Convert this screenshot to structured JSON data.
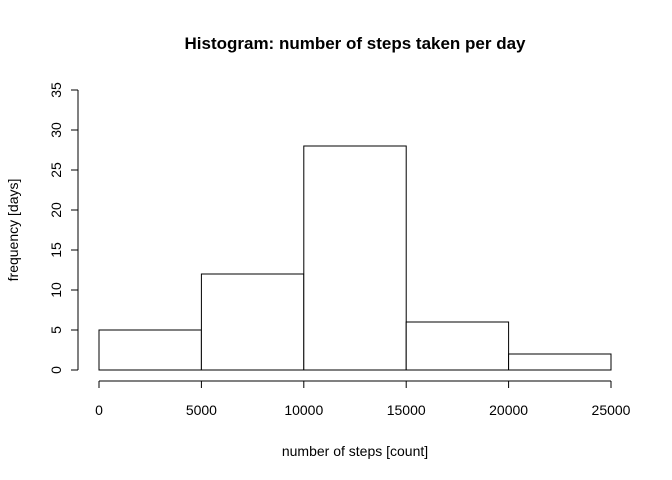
{
  "chart_data": {
    "type": "bar",
    "title": "Histogram: number of steps taken per day",
    "xlabel": "number of steps [count]",
    "ylabel": "frequency [days]",
    "bins": [
      {
        "from": 0,
        "to": 5000,
        "count": 5
      },
      {
        "from": 5000,
        "to": 10000,
        "count": 12
      },
      {
        "from": 10000,
        "to": 15000,
        "count": 28
      },
      {
        "from": 15000,
        "to": 20000,
        "count": 6
      },
      {
        "from": 20000,
        "to": 25000,
        "count": 2
      }
    ],
    "xlim": [
      0,
      25000
    ],
    "ylim": [
      0,
      35
    ],
    "xticks": [
      0,
      5000,
      10000,
      15000,
      20000,
      25000
    ],
    "yticks": [
      0,
      5,
      10,
      15,
      20,
      25,
      30,
      35
    ],
    "grid": false,
    "bar_fill": "#ffffff",
    "bar_stroke": "#000000"
  }
}
